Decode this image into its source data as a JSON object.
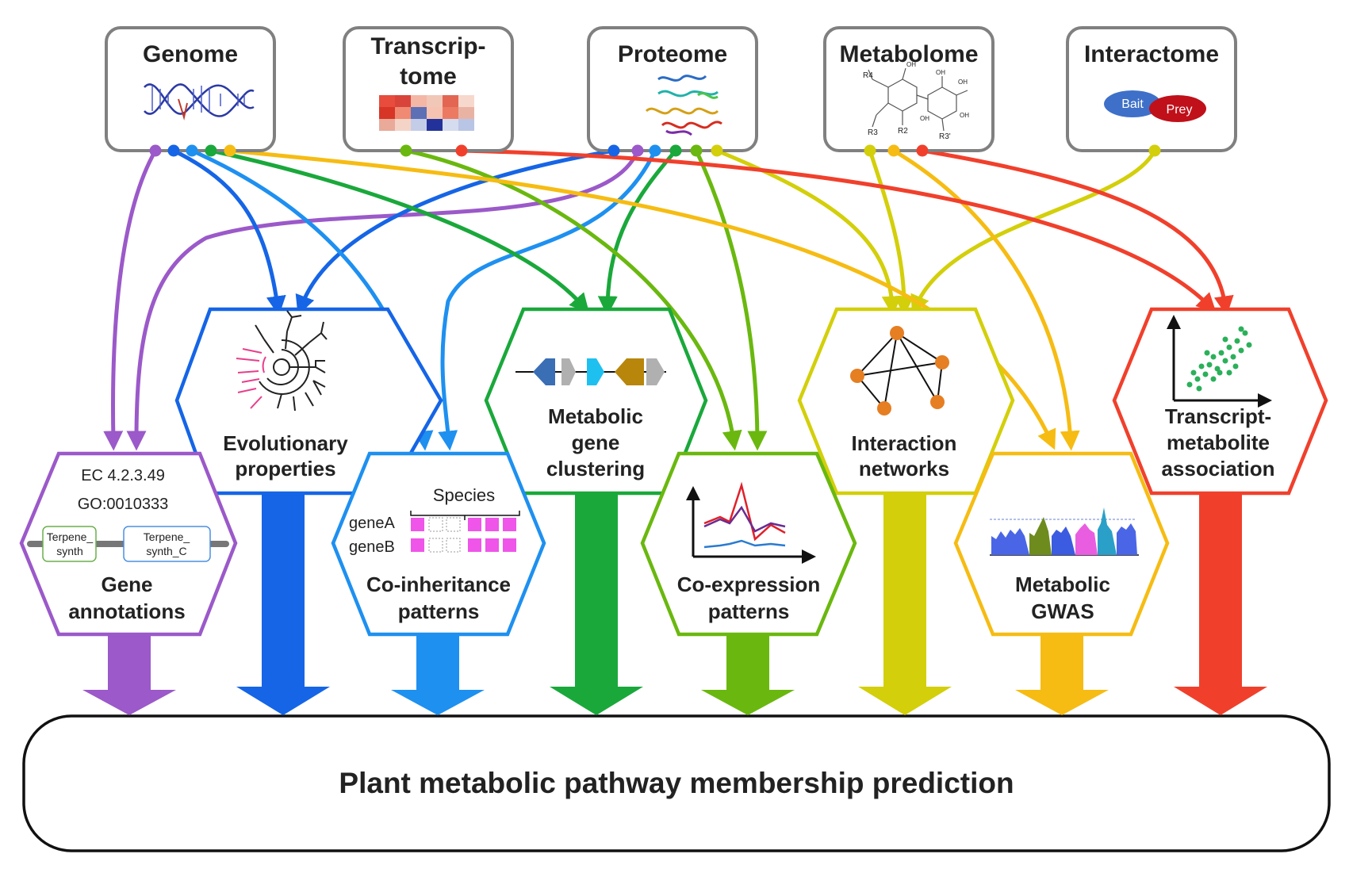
{
  "sources": [
    {
      "key": "genome",
      "label": "Genome"
    },
    {
      "key": "transcriptome",
      "label_lines": [
        "Transcrip-",
        "tome"
      ]
    },
    {
      "key": "proteome",
      "label": "Proteome"
    },
    {
      "key": "metabolome",
      "label": "Metabolome"
    },
    {
      "key": "interactome",
      "label": "Interactome"
    }
  ],
  "interactome_icon": {
    "bait": "Bait",
    "prey": "Prey"
  },
  "metabolome_icon": {
    "r_labels": [
      "R4",
      "R3",
      "R2",
      "R3'"
    ],
    "oh_labels": [
      "OH",
      "OH",
      "OH",
      "OH",
      "OH"
    ]
  },
  "features": [
    {
      "key": "gene_annotations",
      "lines": [
        "Gene",
        "annotations"
      ],
      "color": "#9b59c9"
    },
    {
      "key": "evolutionary",
      "lines": [
        "Evolutionary",
        "properties"
      ],
      "color": "#1565e6"
    },
    {
      "key": "coinheritance",
      "lines": [
        "Co-inheritance",
        "patterns"
      ],
      "color": "#1e90f0"
    },
    {
      "key": "clustering",
      "lines": [
        "Metabolic",
        "gene",
        "clustering"
      ],
      "color": "#1aa83b"
    },
    {
      "key": "coexpression",
      "lines": [
        "Co-expression",
        "patterns"
      ],
      "color": "#6ab80f"
    },
    {
      "key": "interaction",
      "lines": [
        "Interaction",
        "networks"
      ],
      "color": "#d3cf0a"
    },
    {
      "key": "gwas",
      "lines": [
        "Metabolic",
        "GWAS"
      ],
      "color": "#f6bc13"
    },
    {
      "key": "tma",
      "lines": [
        "Transcript-",
        "metabolite",
        "association"
      ],
      "color": "#f0402c"
    }
  ],
  "annotation_icon": {
    "ec": "EC 4.2.3.49",
    "go": "GO:0010333",
    "domain1": [
      "Terpene_",
      "synth"
    ],
    "domain2": [
      "Terpene_",
      "synth_C"
    ]
  },
  "coinheritance_icon": {
    "species": "Species",
    "geneA": "geneA",
    "geneB": "geneB"
  },
  "bottom_label": "Plant metabolic pathway membership prediction"
}
